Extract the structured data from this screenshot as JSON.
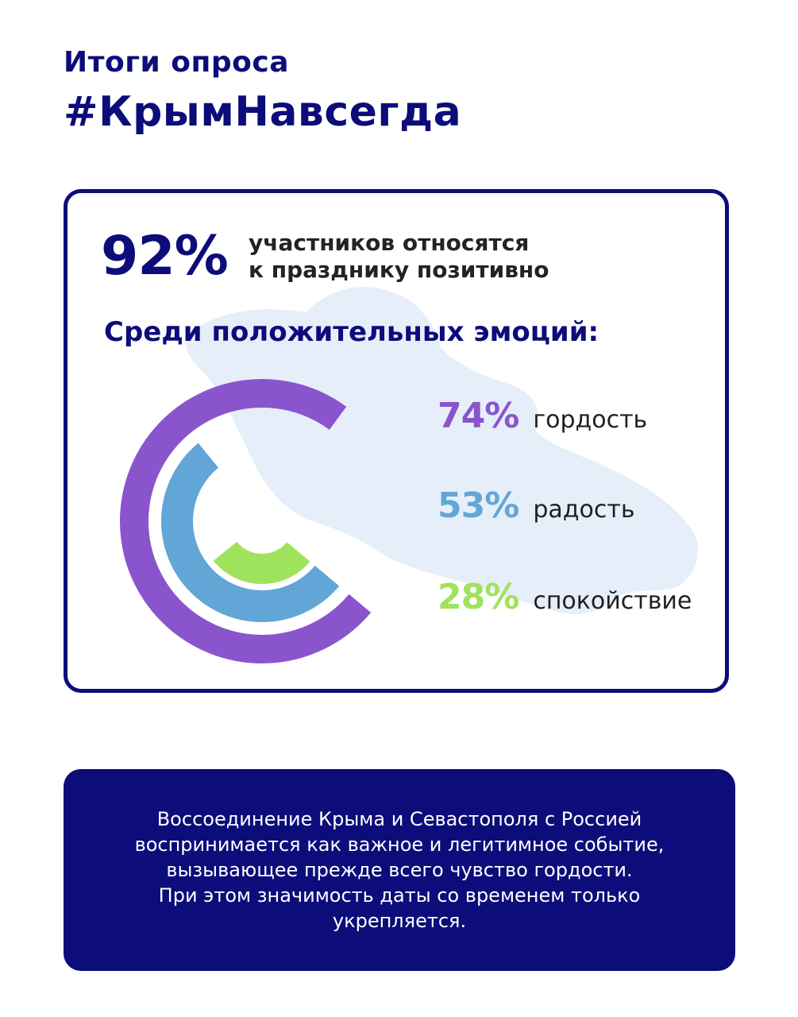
{
  "header": {
    "subtitle": "Итоги опроса",
    "title": "#КрымНавсегда"
  },
  "headline": {
    "value": "92%",
    "caption_line1": "участников относятся",
    "caption_line2": "к празднику позитивно"
  },
  "section_heading": "Среди положительных эмоций:",
  "colors": {
    "brand": "#0c0c7a",
    "map": "#e6eef9"
  },
  "chart_data": {
    "type": "radial-bar",
    "title": "Среди положительных эмоций:",
    "unit": "%",
    "max": 100,
    "series": [
      {
        "name": "гордость",
        "value": 74,
        "label": "74%",
        "color": "#8a55cc"
      },
      {
        "name": "радость",
        "value": 53,
        "label": "53%",
        "color": "#62a6d8"
      },
      {
        "name": "спокойствие",
        "value": 28,
        "label": "28%",
        "color": "#9fe35c"
      }
    ]
  },
  "note": {
    "lines": [
      "Воссоединение Крыма и Севастополя с Россией",
      "воспринимается как важное и легитимное событие,",
      "вызывающее прежде всего чувство гордости.",
      "При этом значимость даты со временем только",
      "укрепляется."
    ]
  }
}
